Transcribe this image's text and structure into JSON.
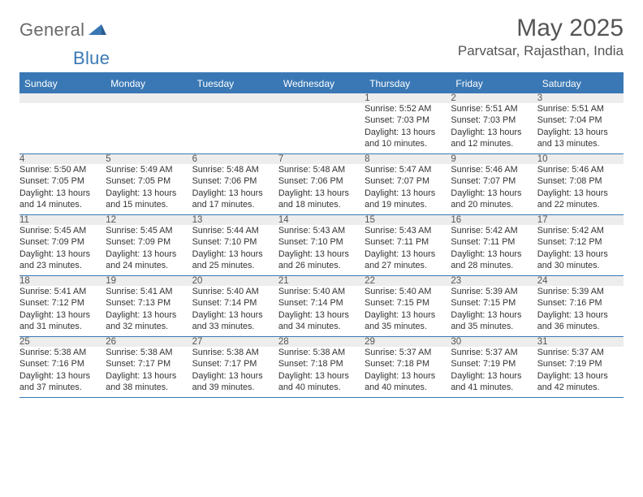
{
  "logo": {
    "general": "General",
    "blue": "Blue"
  },
  "title": "May 2025",
  "location": "Parvatsar, Rajasthan, India",
  "colors": {
    "brand": "#3a78b5",
    "header_text": "#ffffff",
    "daynum_bg": "#ededed",
    "text": "#333333",
    "muted": "#6a6a6a"
  },
  "weekdays": [
    "Sunday",
    "Monday",
    "Tuesday",
    "Wednesday",
    "Thursday",
    "Friday",
    "Saturday"
  ],
  "weeks": [
    [
      null,
      null,
      null,
      null,
      {
        "n": "1",
        "sunrise": "Sunrise: 5:52 AM",
        "sunset": "Sunset: 7:03 PM",
        "day1": "Daylight: 13 hours",
        "day2": "and 10 minutes."
      },
      {
        "n": "2",
        "sunrise": "Sunrise: 5:51 AM",
        "sunset": "Sunset: 7:03 PM",
        "day1": "Daylight: 13 hours",
        "day2": "and 12 minutes."
      },
      {
        "n": "3",
        "sunrise": "Sunrise: 5:51 AM",
        "sunset": "Sunset: 7:04 PM",
        "day1": "Daylight: 13 hours",
        "day2": "and 13 minutes."
      }
    ],
    [
      {
        "n": "4",
        "sunrise": "Sunrise: 5:50 AM",
        "sunset": "Sunset: 7:05 PM",
        "day1": "Daylight: 13 hours",
        "day2": "and 14 minutes."
      },
      {
        "n": "5",
        "sunrise": "Sunrise: 5:49 AM",
        "sunset": "Sunset: 7:05 PM",
        "day1": "Daylight: 13 hours",
        "day2": "and 15 minutes."
      },
      {
        "n": "6",
        "sunrise": "Sunrise: 5:48 AM",
        "sunset": "Sunset: 7:06 PM",
        "day1": "Daylight: 13 hours",
        "day2": "and 17 minutes."
      },
      {
        "n": "7",
        "sunrise": "Sunrise: 5:48 AM",
        "sunset": "Sunset: 7:06 PM",
        "day1": "Daylight: 13 hours",
        "day2": "and 18 minutes."
      },
      {
        "n": "8",
        "sunrise": "Sunrise: 5:47 AM",
        "sunset": "Sunset: 7:07 PM",
        "day1": "Daylight: 13 hours",
        "day2": "and 19 minutes."
      },
      {
        "n": "9",
        "sunrise": "Sunrise: 5:46 AM",
        "sunset": "Sunset: 7:07 PM",
        "day1": "Daylight: 13 hours",
        "day2": "and 20 minutes."
      },
      {
        "n": "10",
        "sunrise": "Sunrise: 5:46 AM",
        "sunset": "Sunset: 7:08 PM",
        "day1": "Daylight: 13 hours",
        "day2": "and 22 minutes."
      }
    ],
    [
      {
        "n": "11",
        "sunrise": "Sunrise: 5:45 AM",
        "sunset": "Sunset: 7:09 PM",
        "day1": "Daylight: 13 hours",
        "day2": "and 23 minutes."
      },
      {
        "n": "12",
        "sunrise": "Sunrise: 5:45 AM",
        "sunset": "Sunset: 7:09 PM",
        "day1": "Daylight: 13 hours",
        "day2": "and 24 minutes."
      },
      {
        "n": "13",
        "sunrise": "Sunrise: 5:44 AM",
        "sunset": "Sunset: 7:10 PM",
        "day1": "Daylight: 13 hours",
        "day2": "and 25 minutes."
      },
      {
        "n": "14",
        "sunrise": "Sunrise: 5:43 AM",
        "sunset": "Sunset: 7:10 PM",
        "day1": "Daylight: 13 hours",
        "day2": "and 26 minutes."
      },
      {
        "n": "15",
        "sunrise": "Sunrise: 5:43 AM",
        "sunset": "Sunset: 7:11 PM",
        "day1": "Daylight: 13 hours",
        "day2": "and 27 minutes."
      },
      {
        "n": "16",
        "sunrise": "Sunrise: 5:42 AM",
        "sunset": "Sunset: 7:11 PM",
        "day1": "Daylight: 13 hours",
        "day2": "and 28 minutes."
      },
      {
        "n": "17",
        "sunrise": "Sunrise: 5:42 AM",
        "sunset": "Sunset: 7:12 PM",
        "day1": "Daylight: 13 hours",
        "day2": "and 30 minutes."
      }
    ],
    [
      {
        "n": "18",
        "sunrise": "Sunrise: 5:41 AM",
        "sunset": "Sunset: 7:12 PM",
        "day1": "Daylight: 13 hours",
        "day2": "and 31 minutes."
      },
      {
        "n": "19",
        "sunrise": "Sunrise: 5:41 AM",
        "sunset": "Sunset: 7:13 PM",
        "day1": "Daylight: 13 hours",
        "day2": "and 32 minutes."
      },
      {
        "n": "20",
        "sunrise": "Sunrise: 5:40 AM",
        "sunset": "Sunset: 7:14 PM",
        "day1": "Daylight: 13 hours",
        "day2": "and 33 minutes."
      },
      {
        "n": "21",
        "sunrise": "Sunrise: 5:40 AM",
        "sunset": "Sunset: 7:14 PM",
        "day1": "Daylight: 13 hours",
        "day2": "and 34 minutes."
      },
      {
        "n": "22",
        "sunrise": "Sunrise: 5:40 AM",
        "sunset": "Sunset: 7:15 PM",
        "day1": "Daylight: 13 hours",
        "day2": "and 35 minutes."
      },
      {
        "n": "23",
        "sunrise": "Sunrise: 5:39 AM",
        "sunset": "Sunset: 7:15 PM",
        "day1": "Daylight: 13 hours",
        "day2": "and 35 minutes."
      },
      {
        "n": "24",
        "sunrise": "Sunrise: 5:39 AM",
        "sunset": "Sunset: 7:16 PM",
        "day1": "Daylight: 13 hours",
        "day2": "and 36 minutes."
      }
    ],
    [
      {
        "n": "25",
        "sunrise": "Sunrise: 5:38 AM",
        "sunset": "Sunset: 7:16 PM",
        "day1": "Daylight: 13 hours",
        "day2": "and 37 minutes."
      },
      {
        "n": "26",
        "sunrise": "Sunrise: 5:38 AM",
        "sunset": "Sunset: 7:17 PM",
        "day1": "Daylight: 13 hours",
        "day2": "and 38 minutes."
      },
      {
        "n": "27",
        "sunrise": "Sunrise: 5:38 AM",
        "sunset": "Sunset: 7:17 PM",
        "day1": "Daylight: 13 hours",
        "day2": "and 39 minutes."
      },
      {
        "n": "28",
        "sunrise": "Sunrise: 5:38 AM",
        "sunset": "Sunset: 7:18 PM",
        "day1": "Daylight: 13 hours",
        "day2": "and 40 minutes."
      },
      {
        "n": "29",
        "sunrise": "Sunrise: 5:37 AM",
        "sunset": "Sunset: 7:18 PM",
        "day1": "Daylight: 13 hours",
        "day2": "and 40 minutes."
      },
      {
        "n": "30",
        "sunrise": "Sunrise: 5:37 AM",
        "sunset": "Sunset: 7:19 PM",
        "day1": "Daylight: 13 hours",
        "day2": "and 41 minutes."
      },
      {
        "n": "31",
        "sunrise": "Sunrise: 5:37 AM",
        "sunset": "Sunset: 7:19 PM",
        "day1": "Daylight: 13 hours",
        "day2": "and 42 minutes."
      }
    ]
  ]
}
